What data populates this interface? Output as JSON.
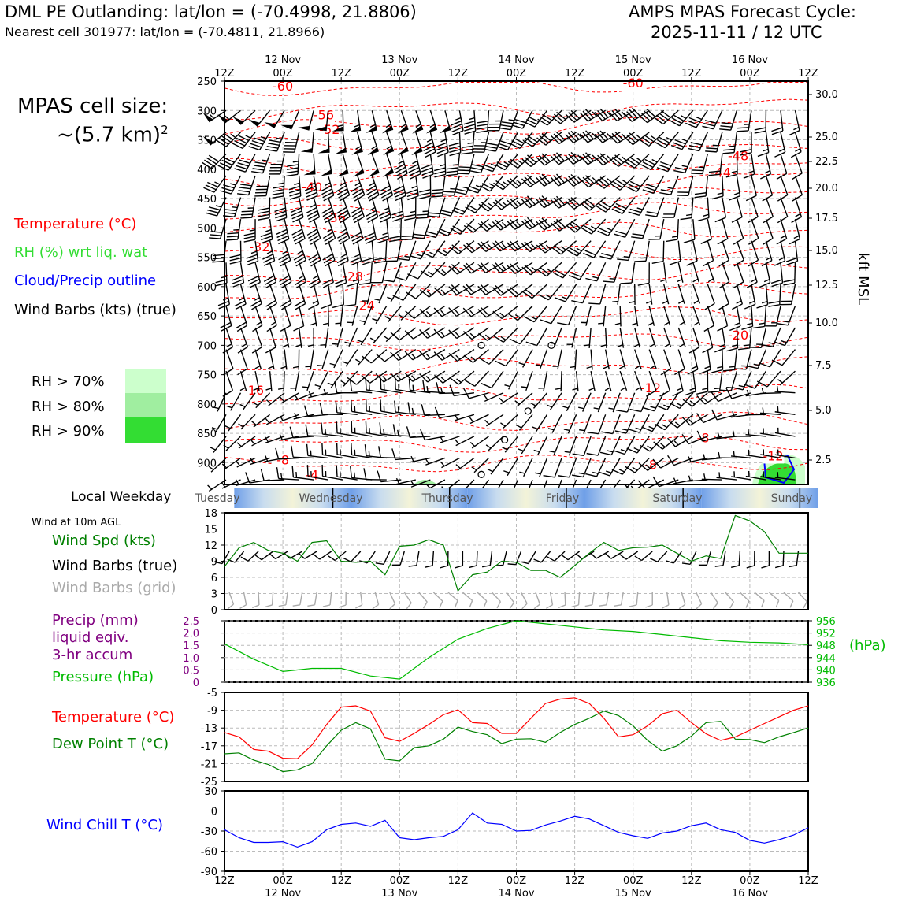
{
  "header": {
    "title": "DML PE Outlanding: lat/lon = (-70.4998, 21.8806)",
    "nearest": "Nearest cell 301977: lat/lon = (-70.4811, 21.8966)",
    "cycle_title": "AMPS MPAS Forecast Cycle:",
    "cycle_time": "2025-11-11 / 12 UTC"
  },
  "cell_size": {
    "line1": "MPAS cell size:",
    "line2": "~(5.7 km)",
    "exp": "2"
  },
  "legend": {
    "temperature": "Temperature (°C)",
    "rh": "RH (%) wrt liq. wat",
    "cloud": "Cloud/Precip outline",
    "barbs": "Wind Barbs (kts) (true)",
    "rh_levels": [
      "RH > 70%",
      "RH > 80%",
      "RH > 90%"
    ],
    "kft": "kft MSL"
  },
  "weekday": {
    "label": "Local Weekday",
    "days": [
      "Tuesday",
      "Wednesday",
      "Thursday",
      "Friday",
      "Saturday",
      "Sunday"
    ]
  },
  "panel_labels": {
    "wind_title": "Wind at 10m AGL",
    "wind_spd": "Wind Spd (kts)",
    "wind_barbs": "Wind Barbs (true)",
    "wind_barbs_grid": "Wind Barbs (grid)",
    "precip1": "Precip (mm)",
    "precip2": "liquid eqiv.",
    "precip3": "3-hr accum",
    "pressure": "Pressure (hPa)",
    "hpa": "(hPa)",
    "temp": "Temperature (°C)",
    "dew": "Dew Point T (°C)",
    "chill": "Wind Chill T (°C)"
  },
  "colors": {
    "temperature": "#ff0000",
    "dewpoint": "#008000",
    "windchill": "#0000ff",
    "windspd": "#008000",
    "pressure": "#00bb00",
    "precip": "#800080",
    "rh70": "#ccffcc",
    "rh80": "#a0eea0",
    "rh90": "#33dd33",
    "grid_barbs": "#aaaaaa"
  },
  "chart_data": [
    {
      "type": "heatmap",
      "name": "time-height cross section",
      "x_ticks_top": [
        "12Z",
        "00Z",
        "12Z",
        "00Z",
        "12Z",
        "00Z",
        "12Z",
        "00Z",
        "12Z",
        "00Z",
        "12Z"
      ],
      "x_dates": [
        "12 Nov",
        "13 Nov",
        "14 Nov",
        "15 Nov",
        "16 Nov"
      ],
      "y_ticks_pressure": [
        250,
        300,
        350,
        400,
        450,
        500,
        550,
        600,
        650,
        700,
        750,
        800,
        850,
        900
      ],
      "y_ticks_kft": [
        "30.0",
        "25.0",
        "22.5",
        "20.0",
        "17.5",
        "15.0",
        "12.5",
        "10.0",
        "7.5",
        "5.0",
        "2.5"
      ],
      "temperature_contour_labels": [
        {
          "t": 10,
          "p": 266,
          "label": "-60"
        },
        {
          "t": 70,
          "p": 261,
          "label": "-60"
        },
        {
          "t": 17,
          "p": 315,
          "label": "-56"
        },
        {
          "t": 18,
          "p": 340,
          "label": "-52"
        },
        {
          "t": 88,
          "p": 385,
          "label": "-48"
        },
        {
          "t": 85,
          "p": 413,
          "label": "-44"
        },
        {
          "t": 15,
          "p": 438,
          "label": "-40"
        },
        {
          "t": 19,
          "p": 490,
          "label": "-36"
        },
        {
          "t": 6,
          "p": 540,
          "label": "-32"
        },
        {
          "t": 22,
          "p": 590,
          "label": "-28"
        },
        {
          "t": 24,
          "p": 640,
          "label": "-24"
        },
        {
          "t": 88,
          "p": 690,
          "label": "-20"
        },
        {
          "t": 73,
          "p": 780,
          "label": "-12"
        },
        {
          "t": 5,
          "p": 784,
          "label": "-16"
        },
        {
          "t": 82,
          "p": 865,
          "label": "-8"
        },
        {
          "t": 10,
          "p": 903,
          "label": "-8"
        },
        {
          "t": 73,
          "p": 911,
          "label": "-8"
        },
        {
          "t": 15,
          "p": 928,
          "label": "-4"
        },
        {
          "t": 94,
          "p": 896,
          "label": "-12"
        }
      ]
    },
    {
      "type": "line",
      "name": "wind speed 10m",
      "x_hours": [
        0,
        3,
        6,
        9,
        12,
        15,
        18,
        21,
        24,
        27,
        30,
        33,
        36,
        39,
        42,
        45,
        48,
        51,
        54,
        57,
        60,
        63,
        66,
        69,
        72,
        75,
        78,
        81,
        84,
        87,
        90,
        93,
        96,
        99,
        102,
        105,
        108,
        111,
        114,
        117,
        120
      ],
      "ylabel": "Wind Spd (kts)",
      "ylim": [
        0,
        18
      ],
      "y_ticks": [
        0,
        3,
        6,
        9,
        12,
        15,
        18
      ],
      "series": [
        {
          "name": "Wind Spd (kts)",
          "values": [
            8,
            11.5,
            12.5,
            11,
            10.5,
            9,
            12.5,
            12.8,
            9,
            8.8,
            9,
            6.5,
            11.8,
            12,
            13,
            12,
            3.5,
            6.5,
            7,
            9,
            8.8,
            7.3,
            7.3,
            6,
            8.2,
            10.5,
            12.5,
            11,
            11.5,
            11.6,
            12,
            10.5,
            9,
            10,
            9.5,
            17.5,
            16.5,
            14.5,
            10.5,
            10.5,
            10.5
          ]
        }
      ]
    },
    {
      "type": "line",
      "name": "pressure",
      "x_hours": [
        0,
        6,
        12,
        18,
        24,
        30,
        36,
        42,
        48,
        54,
        60,
        66,
        72,
        78,
        84,
        90,
        96,
        102,
        108,
        114,
        120
      ],
      "ylim": [
        936,
        956
      ],
      "y_ticks_right": [
        936,
        940,
        944,
        948,
        952,
        956
      ],
      "y_ticks_left_precip": [
        "0",
        "0.5",
        "1.0",
        "1.5",
        "2.0",
        "2.5"
      ],
      "series": [
        {
          "name": "Pressure (hPa)",
          "values": [
            948.5,
            943.5,
            939.5,
            940.5,
            940.5,
            938,
            937,
            944,
            950,
            953.5,
            956,
            955,
            954,
            953,
            952.5,
            951.5,
            950.5,
            949.5,
            949,
            948.8,
            948.2
          ]
        }
      ]
    },
    {
      "type": "line",
      "name": "temperature and dew point",
      "x_hours": [
        0,
        3,
        6,
        9,
        12,
        15,
        18,
        21,
        24,
        27,
        30,
        33,
        36,
        39,
        42,
        45,
        48,
        51,
        54,
        57,
        60,
        63,
        66,
        69,
        72,
        75,
        78,
        81,
        84,
        87,
        90,
        93,
        96,
        99,
        102,
        105,
        108,
        111,
        114,
        117,
        120
      ],
      "ylim": [
        -25,
        -5
      ],
      "y_ticks": [
        -25,
        -21,
        -17,
        -13,
        -9,
        -5
      ],
      "series": [
        {
          "name": "Temperature (°C)",
          "values": [
            -14,
            -15,
            -17.8,
            -18.2,
            -19.8,
            -19.9,
            -16.8,
            -12.2,
            -8.3,
            -8,
            -9.2,
            -15.2,
            -16,
            -14.2,
            -12.2,
            -10,
            -8.9,
            -11.8,
            -12,
            -14.2,
            -14.2,
            -10.8,
            -7.5,
            -6.5,
            -6.2,
            -7.5,
            -10.8,
            -15,
            -14.5,
            -12.5,
            -9.8,
            -9,
            -11.8,
            -14.3,
            -15.8,
            -15,
            -13.5,
            -12,
            -10.5,
            -9,
            -8
          ]
        },
        {
          "name": "Dew Point T (°C)",
          "values": [
            -18.8,
            -18.6,
            -20.2,
            -21.2,
            -22.8,
            -22.4,
            -21,
            -17,
            -13.5,
            -11.8,
            -13.2,
            -20,
            -20.4,
            -17.4,
            -17,
            -15.5,
            -12.8,
            -13.8,
            -14.5,
            -16.5,
            -15.5,
            -15.4,
            -16.2,
            -14,
            -12.2,
            -10.8,
            -9.2,
            -10.2,
            -12.5,
            -15.8,
            -18.2,
            -17,
            -14.8,
            -11.8,
            -11.5,
            -15.5,
            -15.6,
            -16.3,
            -15,
            -14,
            -13
          ]
        }
      ]
    },
    {
      "type": "line",
      "name": "wind chill",
      "x_hours": [
        0,
        3,
        6,
        9,
        12,
        15,
        18,
        21,
        24,
        27,
        30,
        33,
        36,
        39,
        42,
        45,
        48,
        51,
        54,
        57,
        60,
        63,
        66,
        69,
        72,
        75,
        78,
        81,
        84,
        87,
        90,
        93,
        96,
        99,
        102,
        105,
        108,
        111,
        114,
        117,
        120
      ],
      "xlabel": "",
      "ylim": [
        -90,
        30
      ],
      "y_ticks": [
        -90,
        -60,
        -30,
        0,
        30
      ],
      "series": [
        {
          "name": "Wind Chill T (°C)",
          "values": [
            -28,
            -40,
            -47,
            -47,
            -46,
            -54,
            -46,
            -28,
            -20,
            -18,
            -23,
            -14,
            -40,
            -43,
            -40,
            -38,
            -28,
            -3,
            -18,
            -20,
            -30,
            -29,
            -21,
            -15,
            -8,
            -12,
            -22,
            -32,
            -37,
            -41,
            -33,
            -30,
            -22,
            -18,
            -28,
            -32,
            -44,
            -48,
            -43,
            -36,
            -25
          ]
        }
      ]
    }
  ]
}
